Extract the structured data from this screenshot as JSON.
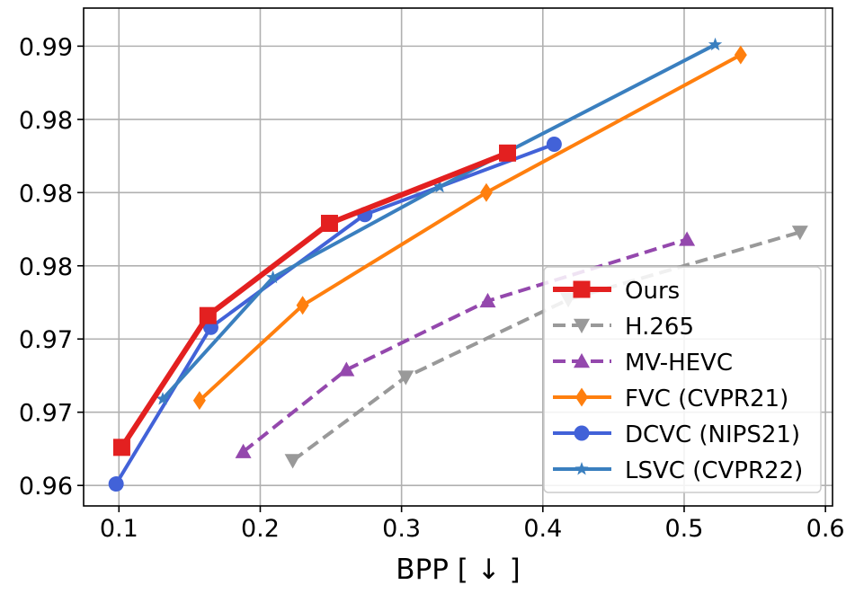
{
  "chart_data": {
    "type": "line",
    "title": "",
    "xlabel": "BPP [ ↓ ]",
    "ylabel": "",
    "xlim": [
      0.075,
      0.605
    ],
    "ylim": [
      0.9586,
      0.9926
    ],
    "xticks": [
      0.1,
      0.2,
      0.3,
      0.4,
      0.5,
      0.6
    ],
    "xtick_labels": [
      "0.1",
      "0.2",
      "0.3",
      "0.4",
      "0.5",
      "0.6"
    ],
    "yticks": [
      0.96,
      0.965,
      0.97,
      0.975,
      0.98,
      0.985,
      0.99
    ],
    "ytick_labels": [
      "0.96",
      "0.97",
      "0.97",
      "0.98",
      "0.98",
      "0.98",
      "0.99"
    ],
    "grid": true,
    "legend_position": "lower-right",
    "series": [
      {
        "name": "Ours",
        "color": "#e32020",
        "linestyle": "solid",
        "linewidth": "thick",
        "marker": "square",
        "x": [
          0.102,
          0.163,
          0.249,
          0.375
        ],
        "y": [
          0.9626,
          0.9716,
          0.9779,
          0.9827
        ]
      },
      {
        "name": "H.265",
        "color": "#999999",
        "linestyle": "dashed",
        "linewidth": "medium",
        "marker": "triangle-down",
        "x": [
          0.223,
          0.303,
          0.418,
          0.582
        ],
        "y": [
          0.9617,
          0.9674,
          0.9727,
          0.9773
        ]
      },
      {
        "name": "MV-HEVC",
        "color": "#9448ad",
        "linestyle": "dashed",
        "linewidth": "medium",
        "marker": "triangle-up",
        "x": [
          0.188,
          0.261,
          0.361,
          0.502
        ],
        "y": [
          0.9623,
          0.9679,
          0.9726,
          0.9768
        ]
      },
      {
        "name": "FVC (CVPR21)",
        "color": "#ff7f0e",
        "linestyle": "solid",
        "linewidth": "medium",
        "marker": "diamond",
        "x": [
          0.157,
          0.23,
          0.36,
          0.54
        ],
        "y": [
          0.9658,
          0.9723,
          0.98,
          0.9894
        ]
      },
      {
        "name": "DCVC (NIPS21)",
        "color": "#4262d8",
        "linestyle": "solid",
        "linewidth": "medium",
        "marker": "circle",
        "x": [
          0.098,
          0.165,
          0.274,
          0.408
        ],
        "y": [
          0.9601,
          0.9708,
          0.9785,
          0.9833
        ]
      },
      {
        "name": "LSVC (CVPR22)",
        "color": "#3a7fbf",
        "linestyle": "solid",
        "linewidth": "medium",
        "marker": "star",
        "x": [
          0.131,
          0.209,
          0.327,
          0.522
        ],
        "y": [
          0.9659,
          0.9742,
          0.9804,
          0.9901
        ]
      }
    ]
  }
}
